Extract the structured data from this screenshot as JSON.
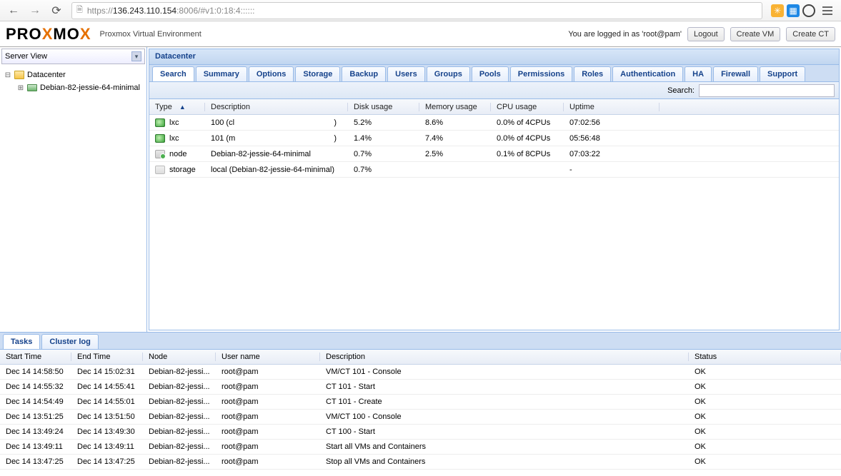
{
  "browser": {
    "url_prefix": "https://",
    "url_host": "136.243.110.154",
    "url_suffix": ":8006/#v1:0:18:4::::::"
  },
  "header": {
    "subtitle": "Proxmox Virtual Environment",
    "login_text": "You are logged in as 'root@pam'",
    "logout": "Logout",
    "create_vm": "Create VM",
    "create_ct": "Create CT"
  },
  "sidebar": {
    "view_label": "Server View",
    "root": "Datacenter",
    "node": "Debian-82-jessie-64-minimal"
  },
  "panel": {
    "title": "Datacenter",
    "tabs": [
      "Search",
      "Summary",
      "Options",
      "Storage",
      "Backup",
      "Users",
      "Groups",
      "Pools",
      "Permissions",
      "Roles",
      "Authentication",
      "HA",
      "Firewall",
      "Support"
    ],
    "active_tab": 0,
    "search_label": "Search:"
  },
  "grid": {
    "columns": [
      "Type",
      "Description",
      "Disk usage",
      "Memory usage",
      "CPU usage",
      "Uptime"
    ],
    "sort_col": 0,
    "rows": [
      {
        "icon": "lxc",
        "type": "lxc",
        "desc_pre": "100 (cl",
        "desc_suf": ")",
        "disk": "5.2%",
        "mem": "8.6%",
        "cpu": "0.0% of 4CPUs",
        "uptime": "07:02:56"
      },
      {
        "icon": "lxc",
        "type": "lxc",
        "desc_pre": "101 (m",
        "desc_suf": ")",
        "disk": "1.4%",
        "mem": "7.4%",
        "cpu": "0.0% of 4CPUs",
        "uptime": "05:56:48"
      },
      {
        "icon": "node",
        "type": "node",
        "desc_pre": "Debian-82-jessie-64-minimal",
        "desc_suf": "",
        "disk": "0.7%",
        "mem": "2.5%",
        "cpu": "0.1% of 8CPUs",
        "uptime": "07:03:22"
      },
      {
        "icon": "storage",
        "type": "storage",
        "desc_pre": "local (Debian-82-jessie-64-minimal)",
        "desc_suf": "",
        "disk": "0.7%",
        "mem": "",
        "cpu": "",
        "uptime": "-"
      }
    ]
  },
  "log": {
    "tabs": [
      "Tasks",
      "Cluster log"
    ],
    "active_tab": 0,
    "columns": [
      "Start Time",
      "End Time",
      "Node",
      "User name",
      "Description",
      "Status"
    ],
    "rows": [
      {
        "start": "Dec 14 14:58:50",
        "end": "Dec 14 15:02:31",
        "node": "Debian-82-jessi...",
        "user": "root@pam",
        "desc": "VM/CT 101 - Console",
        "status": "OK"
      },
      {
        "start": "Dec 14 14:55:32",
        "end": "Dec 14 14:55:41",
        "node": "Debian-82-jessi...",
        "user": "root@pam",
        "desc": "CT 101 - Start",
        "status": "OK"
      },
      {
        "start": "Dec 14 14:54:49",
        "end": "Dec 14 14:55:01",
        "node": "Debian-82-jessi...",
        "user": "root@pam",
        "desc": "CT 101 - Create",
        "status": "OK"
      },
      {
        "start": "Dec 14 13:51:25",
        "end": "Dec 14 13:51:50",
        "node": "Debian-82-jessi...",
        "user": "root@pam",
        "desc": "VM/CT 100 - Console",
        "status": "OK"
      },
      {
        "start": "Dec 14 13:49:24",
        "end": "Dec 14 13:49:30",
        "node": "Debian-82-jessi...",
        "user": "root@pam",
        "desc": "CT 100 - Start",
        "status": "OK"
      },
      {
        "start": "Dec 14 13:49:11",
        "end": "Dec 14 13:49:11",
        "node": "Debian-82-jessi...",
        "user": "root@pam",
        "desc": "Start all VMs and Containers",
        "status": "OK"
      },
      {
        "start": "Dec 14 13:47:25",
        "end": "Dec 14 13:47:25",
        "node": "Debian-82-jessi...",
        "user": "root@pam",
        "desc": "Stop all VMs and Containers",
        "status": "OK"
      }
    ]
  },
  "colors": {
    "accent": "#15428b",
    "orange": "#e57000",
    "border": "#99bbe8"
  }
}
